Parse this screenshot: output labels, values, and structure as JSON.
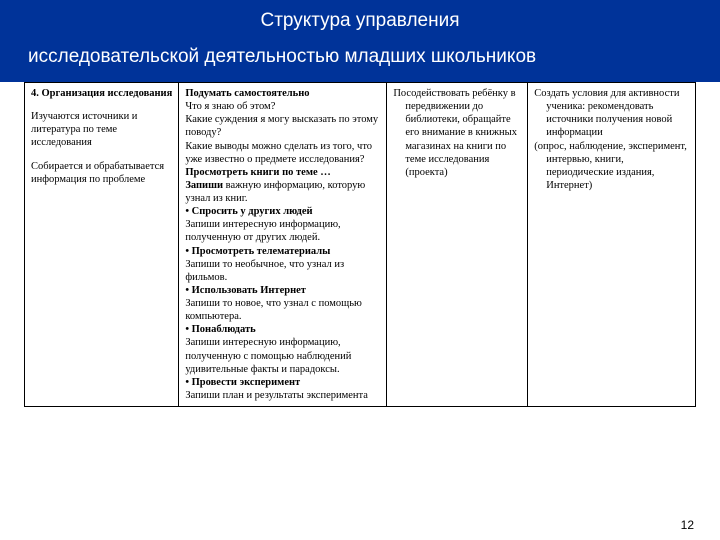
{
  "colors": {
    "header_bg": "#003399",
    "header_text": "#ffffff",
    "page_bg": "#ffffff",
    "text": "#000000",
    "border": "#000000"
  },
  "typography": {
    "header_font": "Arial",
    "body_font": "Times New Roman",
    "header_fontsize_pt": 14,
    "body_fontsize_pt": 8
  },
  "header": {
    "line1": "Структура управления",
    "line2": "исследовательской деятельностью младших школьников"
  },
  "page_number": "12",
  "table": {
    "type": "table",
    "columns": [
      {
        "width_pct": 23
      },
      {
        "width_pct": 31
      },
      {
        "width_pct": 21
      },
      {
        "width_pct": 25
      }
    ],
    "col1": {
      "title": "4. Организация исследования",
      "p1": "Изучаются источники и литература по теме исследования",
      "p2": "Собирается и обрабатывается информация по проблеме"
    },
    "col2": {
      "l0": "Подумать самостоятельно",
      "l1": "Что я знаю об этом?",
      "l2": "Какие суждения я могу высказать по этому поводу?",
      "l3a": "Какие выводы можно сделать из того, что уже известно о предмете исследования? ",
      "l3b": "Просмотреть книги по теме …",
      "l4a": "Запиши",
      "l4b": " важную информацию, которую узнал из книг.",
      "l5": "• Спросить у других людей",
      "l6": "Запиши интересную информацию, полученную от других людей.",
      "l7": "• Просмотреть телематериалы",
      "l8": "Запиши то необычное, что узнал из фильмов.",
      "l9": "• Использовать Интернет",
      "l10": "Запиши то новое, что узнал с помощью компьютера.",
      "l11": "• Понаблюдать",
      "l12": "Запиши интересную информацию, полученную с помощью наблюдений  удивительные факты и парадоксы.",
      "l13": "• Провести эксперимент",
      "l14": "Запиши план и результаты эксперимента"
    },
    "col3": {
      "p1": "Посодействовать ребёнку в передвижении до библиотеки, обращайте его внимание в книжных магазинах на книги по теме исследования (проекта)"
    },
    "col4": {
      "p1": "Создать условия для активности ученика: рекомендовать источники получения  новой информации",
      "p2": "(опрос, наблюдение, эксперимент, интервью, книги, периодические издания, Интернет)"
    }
  }
}
